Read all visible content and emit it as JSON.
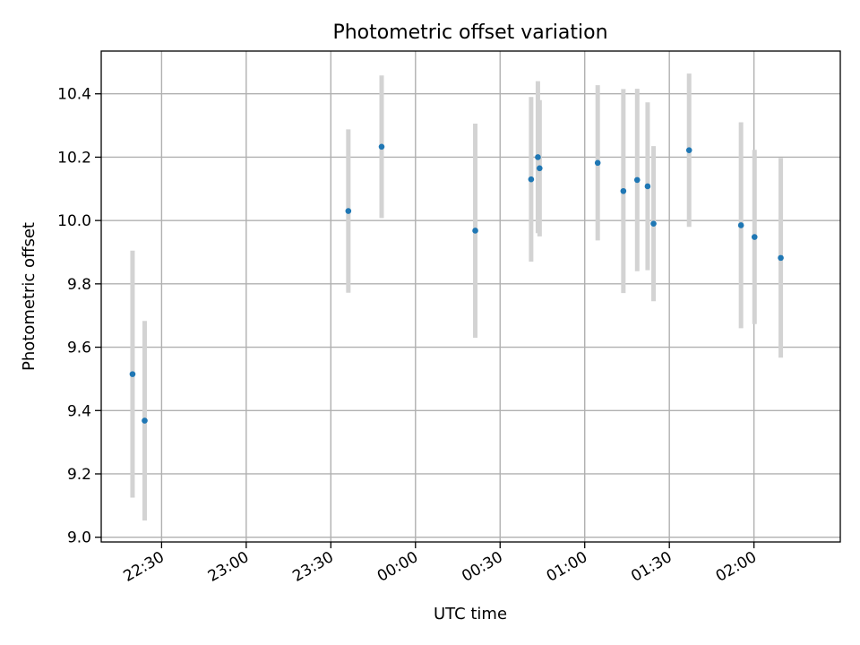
{
  "chart_data": {
    "type": "scatter",
    "title": "Photometric offset variation",
    "xlabel": "UTC time",
    "ylabel": "Photometric offset",
    "x_reference_tick": "22:30",
    "x_tick_interval_minutes": 30,
    "xlim_minutes": [
      -21.4,
      240.6
    ],
    "ylim": [
      8.985,
      10.535
    ],
    "x_ticks": [
      "22:30",
      "23:00",
      "23:30",
      "00:00",
      "00:30",
      "01:00",
      "01:30",
      "02:00"
    ],
    "y_ticks": [
      9.0,
      9.2,
      9.4,
      9.6,
      9.8,
      10.0,
      10.2,
      10.4
    ],
    "y_tick_labels": [
      "9.0",
      "9.2",
      "9.4",
      "9.6",
      "9.8",
      "10.0",
      "10.2",
      "10.4"
    ],
    "grid": true,
    "marker_color": "#1f77b4",
    "errorbar_color": "#d3d3d3",
    "points": [
      {
        "time": "22:20.3",
        "minutes": -10.3,
        "y": 9.515,
        "err": 0.39
      },
      {
        "time": "22:24.0",
        "minutes": -6.0,
        "y": 9.368,
        "err": 0.315
      },
      {
        "time": "23:36.2",
        "minutes": 66.2,
        "y": 10.03,
        "err": 0.258
      },
      {
        "time": "23:48.0",
        "minutes": 78.0,
        "y": 10.233,
        "err": 0.225
      },
      {
        "time": "00:21.2",
        "minutes": 111.2,
        "y": 9.968,
        "err": 0.338
      },
      {
        "time": "00:41.0",
        "minutes": 131.0,
        "y": 10.13,
        "err": 0.26
      },
      {
        "time": "00:43.4",
        "minutes": 133.4,
        "y": 10.2,
        "err": 0.24
      },
      {
        "time": "00:44.0",
        "minutes": 134.0,
        "y": 10.165,
        "err": 0.215
      },
      {
        "time": "01:04.6",
        "minutes": 154.6,
        "y": 10.182,
        "err": 0.245
      },
      {
        "time": "01:13.7",
        "minutes": 163.7,
        "y": 10.093,
        "err": 0.322
      },
      {
        "time": "01:18.6",
        "minutes": 168.6,
        "y": 10.128,
        "err": 0.288
      },
      {
        "time": "01:22.3",
        "minutes": 172.3,
        "y": 10.108,
        "err": 0.265
      },
      {
        "time": "01:24.4",
        "minutes": 174.4,
        "y": 9.99,
        "err": 0.245
      },
      {
        "time": "01:37.0",
        "minutes": 187.0,
        "y": 10.222,
        "err": 0.242
      },
      {
        "time": "01:55.4",
        "minutes": 205.4,
        "y": 9.985,
        "err": 0.325
      },
      {
        "time": "02:00.2",
        "minutes": 210.2,
        "y": 9.948,
        "err": 0.275
      },
      {
        "time": "02:09.5",
        "minutes": 219.5,
        "y": 9.882,
        "err": 0.315
      }
    ]
  }
}
